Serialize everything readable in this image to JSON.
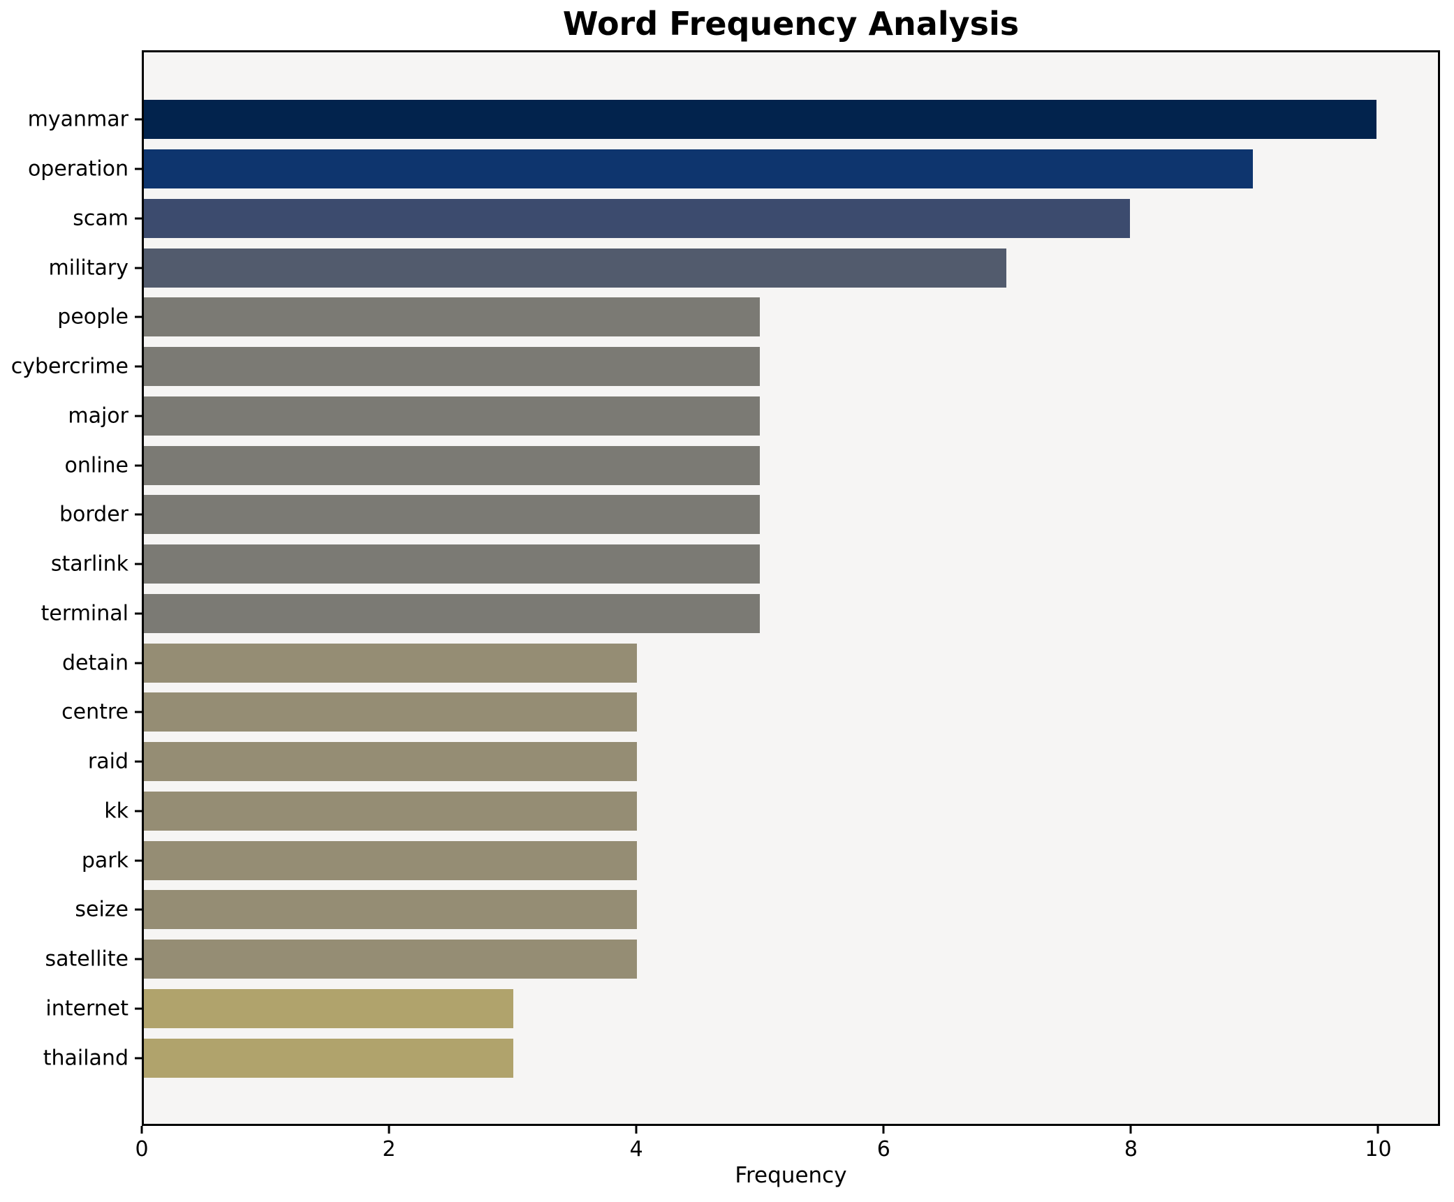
{
  "chart_data": {
    "type": "bar",
    "orientation": "horizontal",
    "title": "Word Frequency Analysis",
    "xlabel": "Frequency",
    "ylabel": "",
    "categories": [
      "myanmar",
      "operation",
      "scam",
      "military",
      "people",
      "cybercrime",
      "major",
      "online",
      "border",
      "starlink",
      "terminal",
      "detain",
      "centre",
      "raid",
      "kk",
      "park",
      "seize",
      "satellite",
      "internet",
      "thailand"
    ],
    "values": [
      10,
      9,
      8,
      7,
      5,
      5,
      5,
      5,
      5,
      5,
      5,
      4,
      4,
      4,
      4,
      4,
      4,
      4,
      3,
      3
    ],
    "bar_colors": [
      "#02234d",
      "#0e356e",
      "#3c4b6e",
      "#525b6d",
      "#7b7a74",
      "#7b7a74",
      "#7b7a74",
      "#7b7a74",
      "#7b7a74",
      "#7b7a74",
      "#7b7a74",
      "#958d74",
      "#958d74",
      "#958d74",
      "#958d74",
      "#958d74",
      "#958d74",
      "#958d74",
      "#b0a36c",
      "#b0a36c"
    ],
    "xlim": [
      0,
      10.5
    ],
    "xticks": [
      0,
      2,
      4,
      6,
      8,
      10
    ],
    "grid": false,
    "legend": null,
    "bar_height_fraction": 0.8,
    "plot_background": "#f6f5f4",
    "figure_background": "#ffffff",
    "spine_color": "#000000"
  }
}
